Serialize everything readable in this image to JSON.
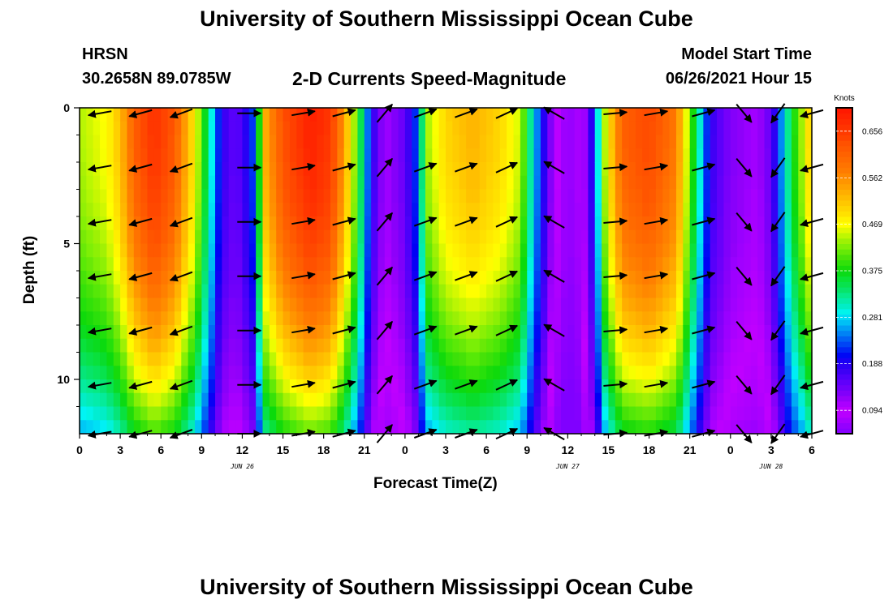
{
  "page": {
    "title_top": "University of Southern Mississippi Ocean Cube",
    "title_bottom": "University of Southern Mississippi Ocean Cube",
    "station": "HRSN",
    "coords": "30.2658N  89.0785W",
    "product": "2-D Currents Speed-Magnitude",
    "model_start_label": "Model Start Time",
    "model_start_value": "06/26/2021 Hour 15"
  },
  "chart_data": {
    "type": "heatmap",
    "title": "2-D Currents Speed-Magnitude",
    "xlabel": "Forecast Time(Z)",
    "ylabel": "Depth (ft)",
    "x_hours_range": [
      0,
      54
    ],
    "y_depth_range_ft": [
      0,
      12
    ],
    "y_ticks": [
      0,
      5,
      10
    ],
    "x_ticks": [
      {
        "h": 0,
        "label": "0"
      },
      {
        "h": 3,
        "label": "3"
      },
      {
        "h": 6,
        "label": "6"
      },
      {
        "h": 9,
        "label": "9"
      },
      {
        "h": 12,
        "label": "12"
      },
      {
        "h": 15,
        "label": "15"
      },
      {
        "h": 18,
        "label": "18"
      },
      {
        "h": 21,
        "label": "21"
      },
      {
        "h": 24,
        "label": "0"
      },
      {
        "h": 27,
        "label": "3"
      },
      {
        "h": 30,
        "label": "6"
      },
      {
        "h": 33,
        "label": "9"
      },
      {
        "h": 36,
        "label": "12"
      },
      {
        "h": 39,
        "label": "15"
      },
      {
        "h": 42,
        "label": "18"
      },
      {
        "h": 45,
        "label": "21"
      },
      {
        "h": 48,
        "label": "0"
      },
      {
        "h": 51,
        "label": "3"
      },
      {
        "h": 54,
        "label": "6"
      }
    ],
    "date_labels": [
      {
        "h": 12,
        "label": "JUN 26"
      },
      {
        "h": 36,
        "label": "JUN 27"
      },
      {
        "h": 51,
        "label": "JUN 28"
      }
    ],
    "colorbar": {
      "unit": "Knots",
      "range": [
        0.047,
        0.703
      ],
      "ticks": [
        0.094,
        0.188,
        0.281,
        0.375,
        0.469,
        0.562,
        0.656
      ]
    },
    "speed_profile_knots": [
      [
        0,
        0.44
      ],
      [
        2,
        0.47
      ],
      [
        3,
        0.52
      ],
      [
        4,
        0.61
      ],
      [
        5.5,
        0.67
      ],
      [
        7,
        0.62
      ],
      [
        8.5,
        0.48
      ],
      [
        9.5,
        0.33
      ],
      [
        10.5,
        0.18
      ],
      [
        11.5,
        0.15
      ],
      [
        12,
        0.17
      ],
      [
        13,
        0.24
      ],
      [
        13.5,
        0.52
      ],
      [
        15,
        0.63
      ],
      [
        17,
        0.69
      ],
      [
        18.5,
        0.66
      ],
      [
        19.5,
        0.55
      ],
      [
        20.5,
        0.4
      ],
      [
        21.5,
        0.19
      ],
      [
        22.5,
        0.11
      ],
      [
        24,
        0.15
      ],
      [
        25,
        0.24
      ],
      [
        25.5,
        0.43
      ],
      [
        27,
        0.5
      ],
      [
        29,
        0.53
      ],
      [
        31,
        0.5
      ],
      [
        32.5,
        0.45
      ],
      [
        33.5,
        0.28
      ],
      [
        35,
        0.1
      ],
      [
        36,
        0.06
      ],
      [
        37,
        0.08
      ],
      [
        38,
        0.22
      ],
      [
        38.8,
        0.46
      ],
      [
        40,
        0.61
      ],
      [
        42,
        0.64
      ],
      [
        44,
        0.58
      ],
      [
        45,
        0.42
      ],
      [
        46.5,
        0.18
      ],
      [
        48,
        0.13
      ],
      [
        50,
        0.11
      ],
      [
        51,
        0.15
      ],
      [
        51.8,
        0.26
      ],
      [
        52.5,
        0.36
      ],
      [
        53.2,
        0.43
      ],
      [
        54,
        0.52
      ]
    ],
    "arrow_rows_ft": [
      0.2,
      2.2,
      4.2,
      6.2,
      8.2,
      10.2,
      12.0
    ],
    "arrow_columns": [
      {
        "h": 1.5,
        "dir_deg": 190
      },
      {
        "h": 4.5,
        "dir_deg": 195
      },
      {
        "h": 7.5,
        "dir_deg": 200
      },
      {
        "h": 12.5,
        "dir_deg": 0
      },
      {
        "h": 16.5,
        "dir_deg": 10
      },
      {
        "h": 19.5,
        "dir_deg": 15
      },
      {
        "h": 22.5,
        "dir_deg": 50
      },
      {
        "h": 25.5,
        "dir_deg": 20
      },
      {
        "h": 28.5,
        "dir_deg": 20
      },
      {
        "h": 31.5,
        "dir_deg": 25
      },
      {
        "h": 35.0,
        "dir_deg": 150
      },
      {
        "h": 39.5,
        "dir_deg": 5
      },
      {
        "h": 42.5,
        "dir_deg": 10
      },
      {
        "h": 46.0,
        "dir_deg": 15
      },
      {
        "h": 49.0,
        "dir_deg": 310
      },
      {
        "h": 51.5,
        "dir_deg": 235
      },
      {
        "h": 54.0,
        "dir_deg": 195
      }
    ]
  }
}
